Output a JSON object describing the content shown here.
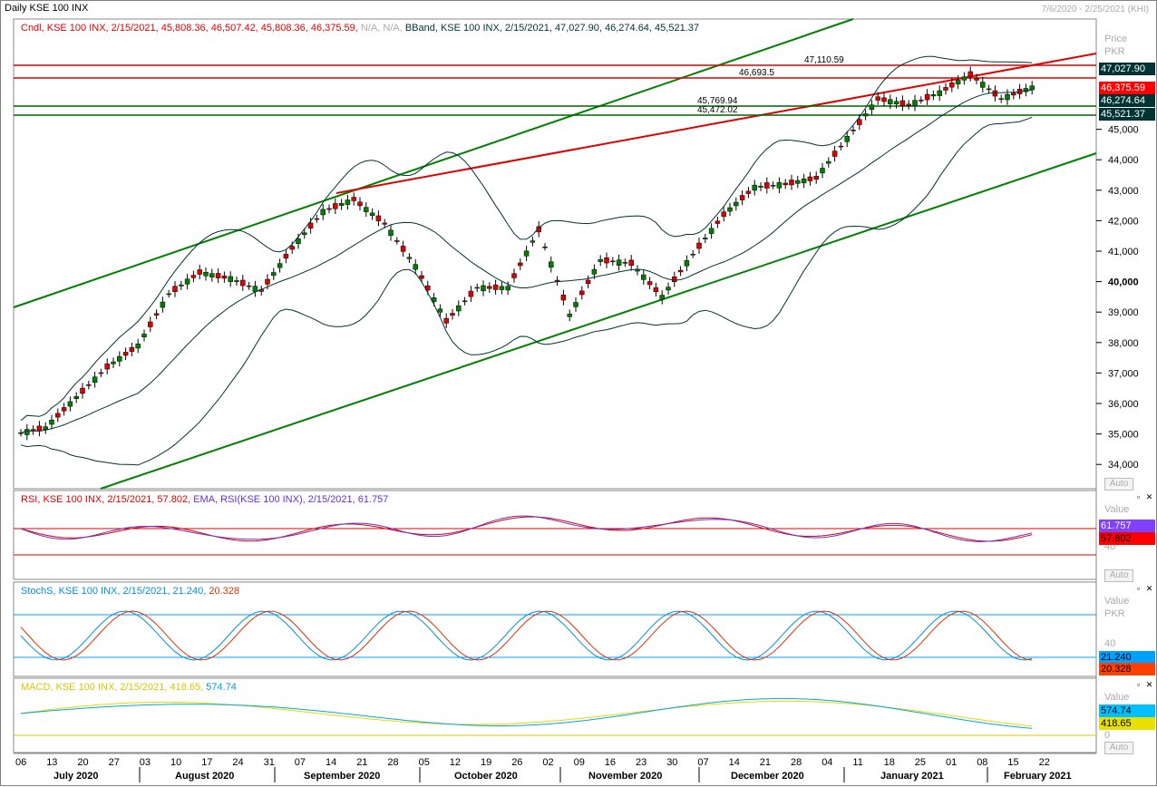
{
  "window": {
    "title": "Daily KSE 100 INX",
    "range": "7/6/2020 - 2/25/2021 (KHI)"
  },
  "price_pane": {
    "header_cndl": "Cndl, KSE 100 INX, 2/15/2021, 45,808.36, 46,507.42, 45,808.36, 46,375.59,",
    "header_na": "N/A, N/A,",
    "header_bband": "BBand, KSE 100 INX, 2/15/2021, 47,027.90, 46,274.64, 45,521.37",
    "axis_title": "Price",
    "axis_unit": "PKR",
    "tags": [
      {
        "text": "47,027.90",
        "bg": "#003333",
        "fg": "#ffffff",
        "value": 47027.9
      },
      {
        "text": "46,375.59",
        "bg": "#ff0000",
        "fg": "#ffffff",
        "value": 46375.59
      },
      {
        "text": "46,274.64",
        "bg": "#003333",
        "fg": "#ffffff",
        "value": 46274.64
      },
      {
        "text": "45,521.37",
        "bg": "#003333",
        "fg": "#ffffff",
        "value": 45521.37
      }
    ],
    "ticks": [
      "45,000",
      "44,000",
      "43,000",
      "42,000",
      "41,000",
      "40,000",
      "39,000",
      "38,000",
      "37,000",
      "36,000",
      "35,000",
      "34,000"
    ],
    "hlines": [
      {
        "label": "47,110.59",
        "value": 47110.59,
        "color": "#e60000"
      },
      {
        "label": "46,693.5",
        "value": 46693.5,
        "color": "#e60000"
      },
      {
        "label": "45,769.94",
        "value": 45769.94,
        "color": "#006400"
      },
      {
        "label": "45,472.02",
        "value": 45472.02,
        "color": "#006400"
      }
    ],
    "auto": "Auto"
  },
  "rsi_pane": {
    "header_rsi": "RSI, KSE 100 INX, 2/15/2021, 57.802,",
    "header_ema": "EMA, RSI(KSE 100 INX), 2/15/2021, 61.757",
    "axis_title": "Value",
    "tags": [
      {
        "text": "61.757",
        "bg": "#8040ff",
        "fg": "#ffffff"
      },
      {
        "text": "57.802",
        "bg": "#ff0000",
        "fg": "#000000"
      }
    ],
    "tick": "40",
    "auto": "Auto"
  },
  "stoch_pane": {
    "header": "StochS, KSE 100 INX, 2/15/2021, 21.240,",
    "header_val": "20.328",
    "axis_title": "Value",
    "axis_unit": "PKR",
    "tags": [
      {
        "text": "21.240",
        "bg": "#00a0ff",
        "fg": "#000000"
      },
      {
        "text": "20.328",
        "bg": "#ff4000",
        "fg": "#000000"
      }
    ],
    "tick": "40"
  },
  "macd_pane": {
    "header": "MACD, KSE 100 INX, 2/15/2021, 418.65,",
    "header_val": "574.74",
    "axis_title": "Value",
    "tags": [
      {
        "text": "574.74",
        "bg": "#00c0ff",
        "fg": "#000000"
      },
      {
        "text": "418.65",
        "bg": "#e8e000",
        "fg": "#000000"
      }
    ],
    "tick": "0",
    "auto": "Auto"
  },
  "x_axis": {
    "days": [
      "06",
      "13",
      "20",
      "27",
      "03",
      "10",
      "17",
      "24",
      "31",
      "07",
      "14",
      "21",
      "28",
      "05",
      "12",
      "19",
      "26",
      "02",
      "09",
      "16",
      "23",
      "30",
      "07",
      "14",
      "21",
      "28",
      "04",
      "11",
      "18",
      "25",
      "01",
      "08",
      "15",
      "22"
    ],
    "months": [
      "July 2020",
      "August 2020",
      "September 2020",
      "October 2020",
      "November 2020",
      "December 2020",
      "January 2021",
      "February 2021"
    ]
  },
  "chart_data": {
    "type": "candlestick",
    "title": "Daily KSE 100 INX",
    "x_range": [
      "7/6/2020",
      "2/25/2021"
    ],
    "ylim": [
      33500,
      47800
    ],
    "series": [
      {
        "name": "Cndl",
        "last": {
          "date": "2/15/2021",
          "open": 45808.36,
          "high": 46507.42,
          "low": 45808.36,
          "close": 46375.59
        }
      },
      {
        "name": "BBand",
        "upper": 47027.9,
        "middle": 46274.64,
        "lower": 45521.37
      }
    ],
    "weekly_close": [
      35200,
      36200,
      37200,
      37900,
      39600,
      40300,
      40100,
      39700,
      41100,
      42300,
      42700,
      41900,
      40500,
      38700,
      39800,
      39800,
      41700,
      38900,
      40700,
      40600,
      39500,
      40900,
      42200,
      43100,
      43200,
      43400,
      44700,
      46000,
      45800,
      46200,
      46800,
      46000,
      46375
    ],
    "horizontal_levels": [
      47110.59,
      46693.5,
      45769.94,
      45472.02
    ],
    "rsi": {
      "last": 57.802,
      "ema": 61.757
    },
    "stoch": {
      "k": 21.24,
      "d": 20.328
    },
    "macd": {
      "macd": 418.65,
      "signal": 574.74
    }
  }
}
